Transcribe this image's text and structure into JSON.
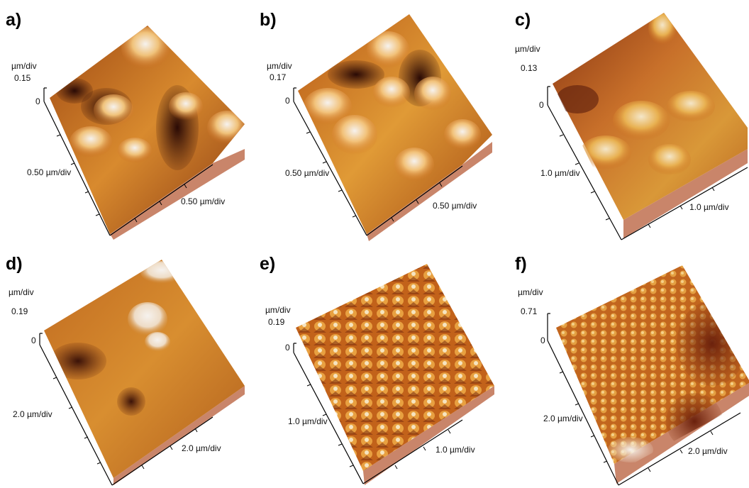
{
  "panels": [
    {
      "id": "a",
      "label": "a)",
      "z_unit": "µm/div",
      "z_max": "0.15",
      "z_zero": "0",
      "x_label": "0.50 µm/div",
      "y_label": "0.50 µm/div"
    },
    {
      "id": "b",
      "label": "b)",
      "z_unit": "µm/div",
      "z_max": "0.17",
      "z_zero": "0",
      "x_label": "0.50 µm/div",
      "y_label": "0.50 µm/div"
    },
    {
      "id": "c",
      "label": "c)",
      "z_unit": "µm/div",
      "z_max": "0.13",
      "z_zero": "0",
      "x_label": "1.0 µm/div",
      "y_label": "1.0 µm/div"
    },
    {
      "id": "d",
      "label": "d)",
      "z_unit": "µm/div",
      "z_max": "0.19",
      "z_zero": "0",
      "x_label": "2.0 µm/div",
      "y_label": "2.0 µm/div"
    },
    {
      "id": "e",
      "label": "e)",
      "z_unit": "µm/div",
      "z_max": "0.19",
      "z_zero": "0",
      "x_label": "1.0 µm/div",
      "y_label": "1.0 µm/div"
    },
    {
      "id": "f",
      "label": "f)",
      "z_unit": "µm/div",
      "z_max": "0.71",
      "z_zero": "0",
      "x_label": "2.0 µm/div",
      "y_label": "2.0 µm/div"
    }
  ],
  "colors": {
    "dark": "#3a1208",
    "mid": "#c8661a",
    "light": "#f2c878",
    "peak": "#f4f0ec",
    "base": "#c9856a"
  }
}
